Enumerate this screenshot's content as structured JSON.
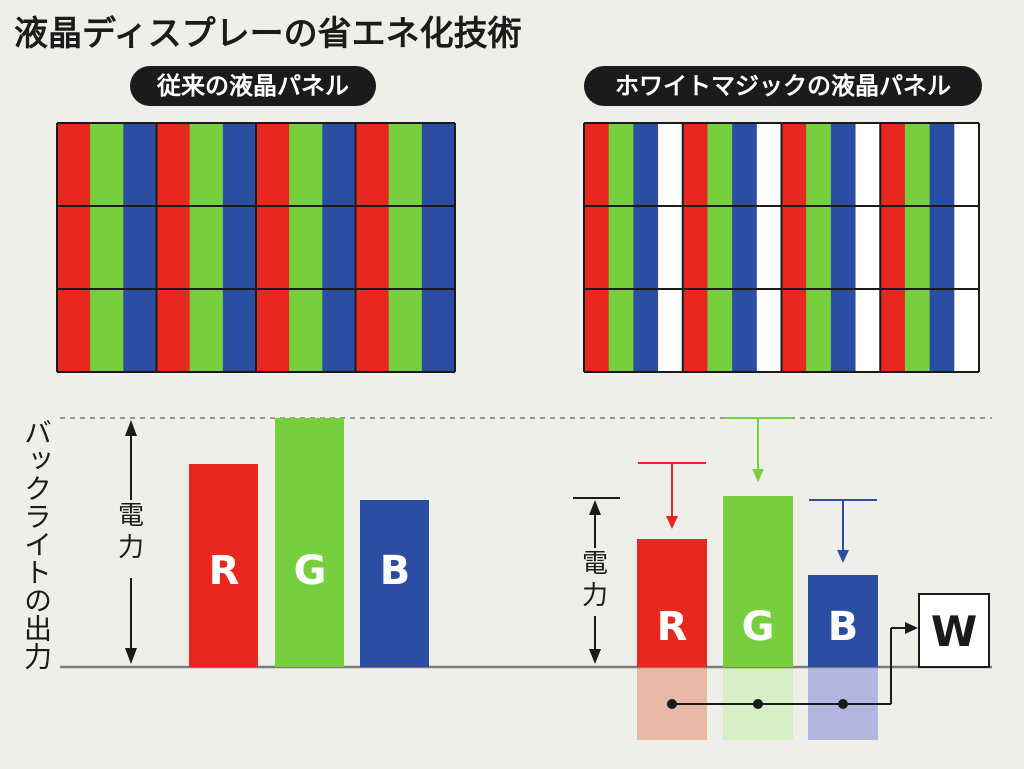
{
  "title": "液晶ディスプレーの省エネ化技術",
  "left_panel": {
    "label": "従来の液晶パネル"
  },
  "right_panel": {
    "label": "ホワイトマジックの液晶パネル"
  },
  "vertical_axis_label": "バックライトの出力",
  "power_label": "電力",
  "power_label_right": "電力",
  "bars_left": [
    "R",
    "G",
    "B"
  ],
  "bars_right": [
    "R",
    "G",
    "B"
  ],
  "white_box": "W",
  "colors": {
    "red": "#e8281f",
    "green": "#77cf3d",
    "blue": "#2c4ea2",
    "white": "#ffffff",
    "dark": "#1b1b1b",
    "bg": "#efefea",
    "red_faint": "#e9b9a6",
    "green_faint": "#d6efc4",
    "blue_faint": "#b2b6e0",
    "baseline": "#7b7b7b"
  }
}
